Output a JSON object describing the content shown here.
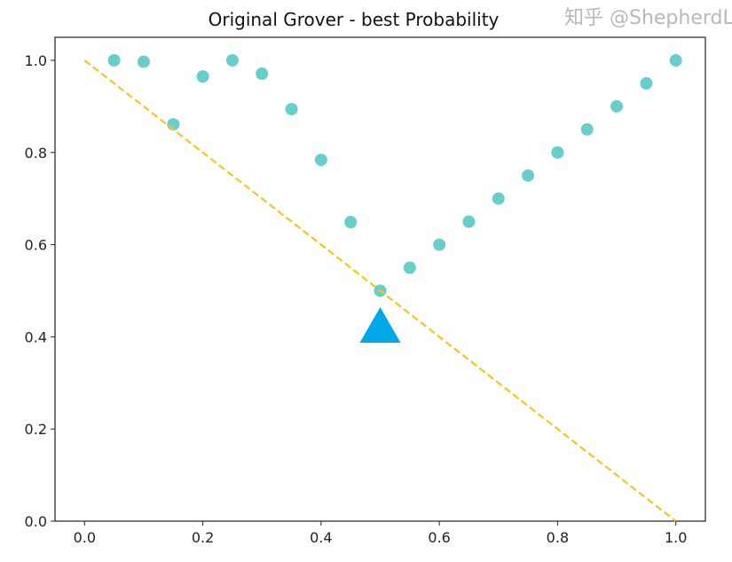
{
  "chart_data": {
    "type": "scatter",
    "title": "Original Grover - best Probability",
    "xlabel": "",
    "ylabel": "",
    "xlim": [
      -0.05,
      1.05
    ],
    "ylim": [
      0.0,
      1.05
    ],
    "xticks": [
      "0.0",
      "0.2",
      "0.4",
      "0.6",
      "0.8",
      "1.0"
    ],
    "yticks": [
      "0.0",
      "0.2",
      "0.4",
      "0.6",
      "0.8",
      "1.0"
    ],
    "grid": false,
    "series": [
      {
        "kind": "scatter",
        "color": "#5ecbc8",
        "x": [
          0.05,
          0.1,
          0.15,
          0.2,
          0.25,
          0.3,
          0.35,
          0.4,
          0.45,
          0.5,
          0.55,
          0.6,
          0.65,
          0.7,
          0.75,
          0.8,
          0.85,
          0.9,
          0.95,
          1.0
        ],
        "y": [
          1.0,
          0.997,
          0.861,
          0.965,
          1.0,
          0.971,
          0.894,
          0.784,
          0.649,
          0.5,
          0.55,
          0.6,
          0.65,
          0.7,
          0.75,
          0.8,
          0.85,
          0.9,
          0.95,
          1.0
        ]
      },
      {
        "kind": "line",
        "style": "dashed",
        "color": "#f5c518",
        "x": [
          0,
          1
        ],
        "y": [
          1,
          0
        ]
      },
      {
        "kind": "marker",
        "marker": "triangle",
        "color": "#00a8e8",
        "x": [
          0.5
        ],
        "y": [
          0.42
        ]
      }
    ]
  },
  "watermark": "知乎 @ShepherdL"
}
